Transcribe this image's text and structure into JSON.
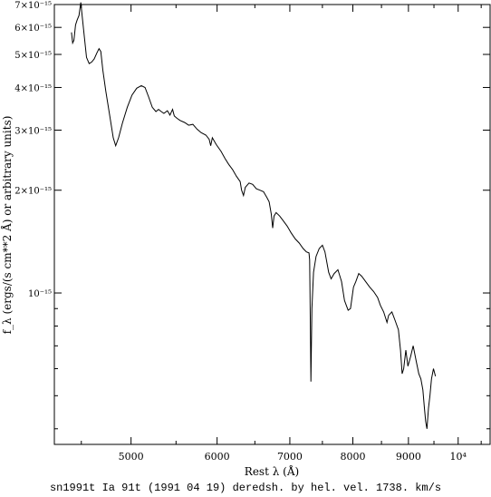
{
  "caption": "sn1991t Ia 91t (1991 04 19) deredsh. by hel. vel.  1738. km/s",
  "chart_data": {
    "type": "line",
    "title": "",
    "xlabel": "Rest λ (Å)",
    "ylabel": "f_λ (ergs/(s cm**2 Å) or arbitrary units)",
    "xscale": "log",
    "yscale": "log",
    "xlim": [
      4250,
      10700
    ],
    "ylim": [
      3.6e-16,
      7e-15
    ],
    "grid": false,
    "x_ticks": [
      {
        "value": 5000,
        "label": "5000"
      },
      {
        "value": 6000,
        "label": "6000"
      },
      {
        "value": 7000,
        "label": "7000"
      },
      {
        "value": 8000,
        "label": "8000"
      },
      {
        "value": 9000,
        "label": "9000"
      },
      {
        "value": 10000,
        "label": "10⁴"
      }
    ],
    "y_ticks": [
      {
        "value": 7e-15,
        "label": "7×10⁻¹⁵"
      },
      {
        "value": 6e-15,
        "label": "6×10⁻¹⁵"
      },
      {
        "value": 5e-15,
        "label": "5×10⁻¹⁵"
      },
      {
        "value": 4e-15,
        "label": "4×10⁻¹⁵"
      },
      {
        "value": 3e-15,
        "label": "3×10⁻¹⁵"
      },
      {
        "value": 2e-15,
        "label": "2×10⁻¹⁵"
      },
      {
        "value": 1e-15,
        "label": "10⁻¹⁵"
      }
    ],
    "y_minor_ticks": [
      9e-16,
      8e-16,
      7e-16,
      6e-16,
      5e-16,
      4e-16
    ],
    "series": [
      {
        "name": "",
        "color": "#000000",
        "points": [
          [
            4407,
            5.8e-15
          ],
          [
            4418,
            5.4e-15
          ],
          [
            4430,
            5.5e-15
          ],
          [
            4445,
            6.1e-15
          ],
          [
            4460,
            6.3e-15
          ],
          [
            4478,
            6.5e-15
          ],
          [
            4495,
            7.1e-15
          ],
          [
            4510,
            6.4e-15
          ],
          [
            4530,
            5.6e-15
          ],
          [
            4550,
            4.9e-15
          ],
          [
            4575,
            4.7e-15
          ],
          [
            4600,
            4.75e-15
          ],
          [
            4625,
            4.85e-15
          ],
          [
            4650,
            5.05e-15
          ],
          [
            4672,
            5.2e-15
          ],
          [
            4690,
            5.1e-15
          ],
          [
            4710,
            4.5e-15
          ],
          [
            4740,
            3.9e-15
          ],
          [
            4780,
            3.3e-15
          ],
          [
            4815,
            2.85e-15
          ],
          [
            4840,
            2.7e-15
          ],
          [
            4870,
            2.85e-15
          ],
          [
            4910,
            3.15e-15
          ],
          [
            4960,
            3.5e-15
          ],
          [
            5010,
            3.8e-15
          ],
          [
            5060,
            3.98e-15
          ],
          [
            5110,
            4.05e-15
          ],
          [
            5150,
            4e-15
          ],
          [
            5190,
            3.75e-15
          ],
          [
            5230,
            3.5e-15
          ],
          [
            5270,
            3.4e-15
          ],
          [
            5300,
            3.45e-15
          ],
          [
            5330,
            3.4e-15
          ],
          [
            5360,
            3.36e-15
          ],
          [
            5400,
            3.42e-15
          ],
          [
            5430,
            3.32e-15
          ],
          [
            5460,
            3.45e-15
          ],
          [
            5480,
            3.3e-15
          ],
          [
            5510,
            3.25e-15
          ],
          [
            5550,
            3.2e-15
          ],
          [
            5600,
            3.16e-15
          ],
          [
            5650,
            3.1e-15
          ],
          [
            5700,
            3.12e-15
          ],
          [
            5750,
            3.02e-15
          ],
          [
            5800,
            2.95e-15
          ],
          [
            5860,
            2.9e-15
          ],
          [
            5900,
            2.82e-15
          ],
          [
            5920,
            2.7e-15
          ],
          [
            5940,
            2.85e-15
          ],
          [
            5990,
            2.72e-15
          ],
          [
            6050,
            2.6e-15
          ],
          [
            6100,
            2.48e-15
          ],
          [
            6150,
            2.38e-15
          ],
          [
            6200,
            2.3e-15
          ],
          [
            6250,
            2.2e-15
          ],
          [
            6300,
            2.12e-15
          ],
          [
            6320,
            2e-15
          ],
          [
            6345,
            1.93e-15
          ],
          [
            6370,
            2.04e-15
          ],
          [
            6420,
            2.1e-15
          ],
          [
            6470,
            2.08e-15
          ],
          [
            6520,
            2.02e-15
          ],
          [
            6570,
            2e-15
          ],
          [
            6620,
            1.98e-15
          ],
          [
            6670,
            1.9e-15
          ],
          [
            6700,
            1.85e-15
          ],
          [
            6730,
            1.7e-15
          ],
          [
            6750,
            1.55e-15
          ],
          [
            6770,
            1.68e-15
          ],
          [
            6800,
            1.72e-15
          ],
          [
            6850,
            1.68e-15
          ],
          [
            6900,
            1.63e-15
          ],
          [
            6960,
            1.57e-15
          ],
          [
            7020,
            1.5e-15
          ],
          [
            7080,
            1.44e-15
          ],
          [
            7140,
            1.4e-15
          ],
          [
            7200,
            1.35e-15
          ],
          [
            7250,
            1.32e-15
          ],
          [
            7290,
            1.31e-15
          ],
          [
            7300,
            1.25e-15
          ],
          [
            7310,
            8.5e-16
          ],
          [
            7320,
            5.5e-16
          ],
          [
            7335,
            9e-16
          ],
          [
            7360,
            1.15e-15
          ],
          [
            7400,
            1.28e-15
          ],
          [
            7450,
            1.35e-15
          ],
          [
            7500,
            1.38e-15
          ],
          [
            7540,
            1.32e-15
          ],
          [
            7600,
            1.15e-15
          ],
          [
            7640,
            1.1e-15
          ],
          [
            7690,
            1.14e-15
          ],
          [
            7750,
            1.17e-15
          ],
          [
            7810,
            1.08e-15
          ],
          [
            7860,
            9.5e-16
          ],
          [
            7920,
            8.9e-16
          ],
          [
            7960,
            9e-16
          ],
          [
            8010,
            1.04e-15
          ],
          [
            8050,
            1.08e-15
          ],
          [
            8100,
            1.14e-15
          ],
          [
            8150,
            1.12e-15
          ],
          [
            8220,
            1.08e-15
          ],
          [
            8290,
            1.04e-15
          ],
          [
            8360,
            1.01e-15
          ],
          [
            8430,
            9.7e-16
          ],
          [
            8480,
            9.2e-16
          ],
          [
            8540,
            8.8e-16
          ],
          [
            8600,
            8.2e-16
          ],
          [
            8630,
            8.6e-16
          ],
          [
            8690,
            8.8e-16
          ],
          [
            8750,
            8.3e-16
          ],
          [
            8810,
            7.8e-16
          ],
          [
            8850,
            6.8e-16
          ],
          [
            8880,
            5.8e-16
          ],
          [
            8910,
            6e-16
          ],
          [
            8950,
            6.8e-16
          ],
          [
            8990,
            6.1e-16
          ],
          [
            9040,
            6.5e-16
          ],
          [
            9090,
            7e-16
          ],
          [
            9150,
            6.3e-16
          ],
          [
            9200,
            5.8e-16
          ],
          [
            9240,
            5.6e-16
          ],
          [
            9280,
            5.2e-16
          ],
          [
            9310,
            4.6e-16
          ],
          [
            9335,
            4.2e-16
          ],
          [
            9360,
            4e-16
          ],
          [
            9390,
            4.6e-16
          ],
          [
            9420,
            5e-16
          ],
          [
            9450,
            5.6e-16
          ],
          [
            9490,
            6e-16
          ],
          [
            9530,
            5.7e-16
          ]
        ]
      }
    ]
  }
}
